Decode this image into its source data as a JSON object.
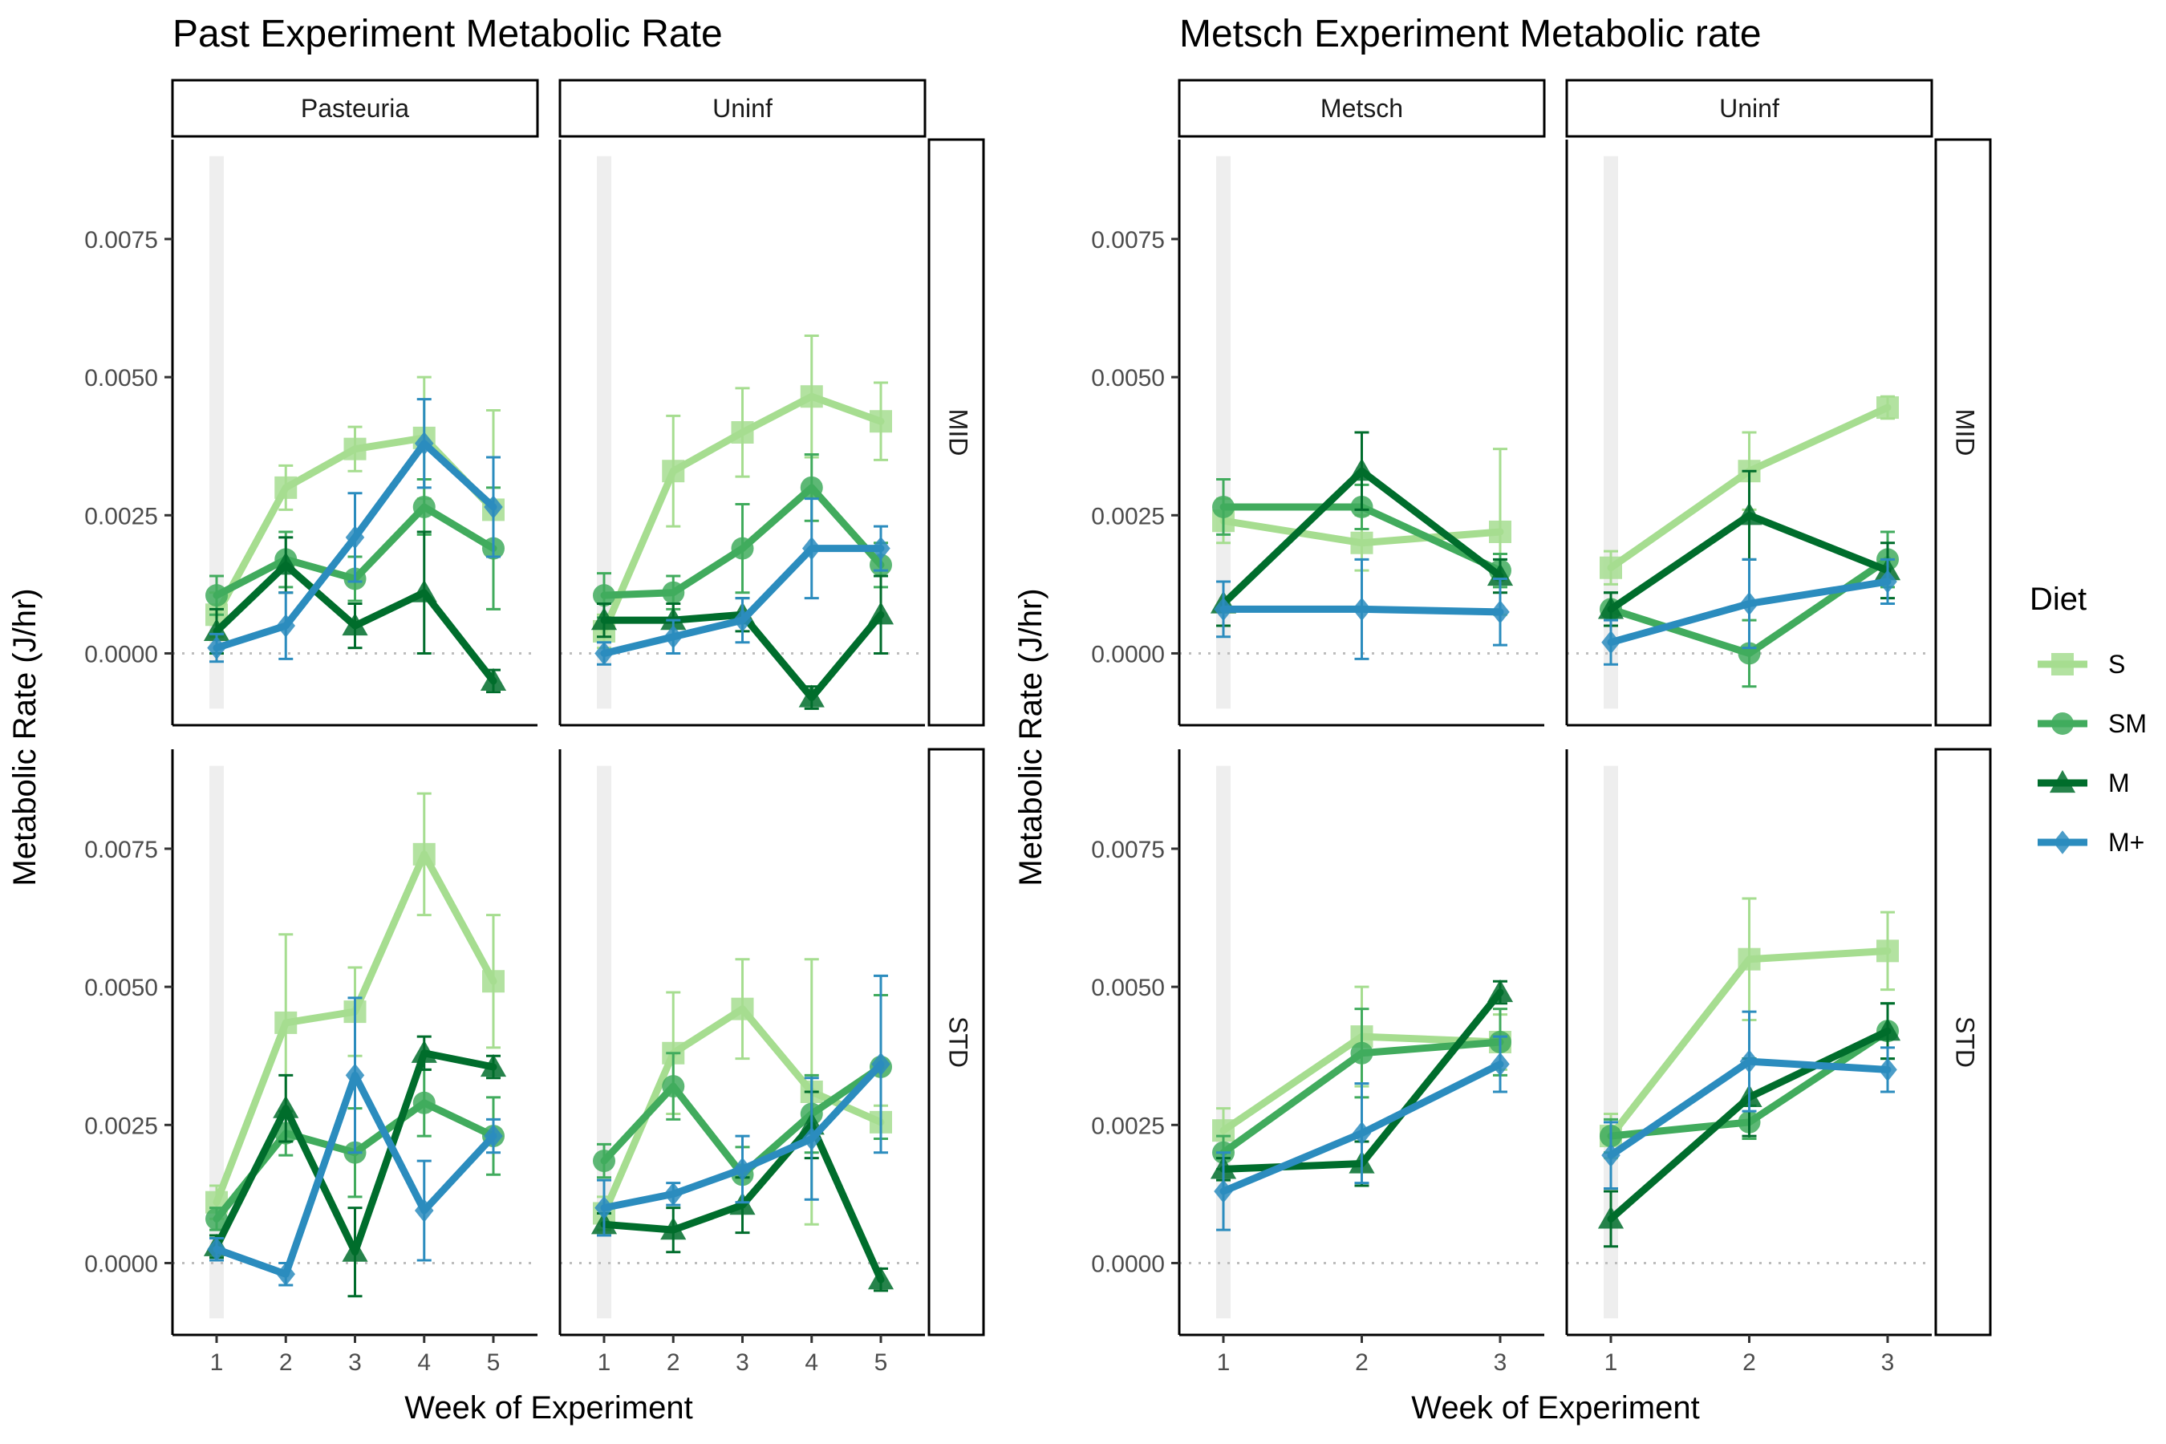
{
  "legend": {
    "title": "Diet",
    "items": [
      {
        "label": "S",
        "color": "#a6dd90",
        "shape": "square"
      },
      {
        "label": "SM",
        "color": "#41ab5d",
        "shape": "circle"
      },
      {
        "label": "M",
        "color": "#006d2c",
        "shape": "triangle"
      },
      {
        "label": "M+",
        "color": "#2b8cbe",
        "shape": "diamond"
      }
    ]
  },
  "chart_data": [
    {
      "type": "line",
      "title": "Past Experiment Metabolic Rate",
      "xlabel": "Week of Experiment",
      "ylabel": "Metabolic Rate (J/hr)",
      "ylim": [
        -0.0013,
        0.0093
      ],
      "yticks": [
        "0.0000",
        "0.0025",
        "0.0050",
        "0.0075"
      ],
      "ytick_values": [
        0,
        0.0025,
        0.005,
        0.0075
      ],
      "x": [
        1,
        2,
        3,
        4,
        5
      ],
      "xticks": [
        "1",
        "2",
        "3",
        "4",
        "5"
      ],
      "col_facets": [
        "Pasteuria",
        "Uninf"
      ],
      "row_facets": [
        "MID",
        "STD"
      ],
      "grid": false,
      "legend_position": "right",
      "panels": [
        {
          "col": "Pasteuria",
          "row": "MID",
          "series": [
            {
              "name": "S",
              "values": [
                0.0007,
                0.003,
                0.0037,
                0.0039,
                0.0026
              ],
              "errors": [
                0.0004,
                0.0004,
                0.0004,
                0.0011,
                0.0018
              ]
            },
            {
              "name": "SM",
              "values": [
                0.00105,
                0.0017,
                0.00135,
                0.00265,
                0.0019
              ],
              "errors": [
                0.00035,
                0.0005,
                0.0004,
                0.0005,
                0.0011
              ]
            },
            {
              "name": "M",
              "values": [
                0.0004,
                0.0016,
                0.0005,
                0.0011,
                -0.0005
              ],
              "errors": [
                0.0004,
                0.0005,
                0.0004,
                0.0011,
                0.0002
              ]
            },
            {
              "name": "M+",
              "values": [
                0.0001,
                0.0005,
                0.0021,
                0.0038,
                0.00265
              ],
              "errors": [
                0.00025,
                0.0006,
                0.0008,
                0.0008,
                0.0009
              ]
            }
          ]
        },
        {
          "col": "Uninf",
          "row": "MID",
          "series": [
            {
              "name": "S",
              "values": [
                0.0004,
                0.0033,
                0.004,
                0.00465,
                0.0042
              ],
              "errors": [
                0.0003,
                0.001,
                0.0008,
                0.0011,
                0.0007
              ]
            },
            {
              "name": "SM",
              "values": [
                0.00105,
                0.0011,
                0.0019,
                0.003,
                0.0016
              ],
              "errors": [
                0.0004,
                0.0003,
                0.0008,
                0.0006,
                0.0004
              ]
            },
            {
              "name": "M",
              "values": [
                0.0006,
                0.0006,
                0.0007,
                -0.0008,
                0.0007
              ],
              "errors": [
                0.0003,
                0.0003,
                0.0003,
                0.0002,
                0.0007
              ]
            },
            {
              "name": "M+",
              "values": [
                0.0,
                0.0003,
                0.0006,
                0.0019,
                0.0019
              ],
              "errors": [
                0.0002,
                0.0003,
                0.0004,
                0.0009,
                0.0004
              ]
            }
          ]
        },
        {
          "col": "Pasteuria",
          "row": "STD",
          "series": [
            {
              "name": "S",
              "values": [
                0.0011,
                0.00435,
                0.00455,
                0.0074,
                0.0051
              ],
              "errors": [
                0.0003,
                0.0016,
                0.0008,
                0.0011,
                0.0012
              ]
            },
            {
              "name": "SM",
              "values": [
                0.0008,
                0.00235,
                0.002,
                0.0029,
                0.0023
              ],
              "errors": [
                0.0002,
                0.0004,
                0.0008,
                0.0006,
                0.0007
              ]
            },
            {
              "name": "M",
              "values": [
                0.0003,
                0.0028,
                0.0002,
                0.0038,
                0.00355
              ],
              "errors": [
                0.0002,
                0.0006,
                0.0008,
                0.0003,
                0.0002
              ]
            },
            {
              "name": "M+",
              "values": [
                0.00025,
                -0.0002,
                0.0034,
                0.00095,
                0.0023
              ],
              "errors": [
                0.0002,
                0.0002,
                0.0014,
                0.0009,
                0.0003
              ]
            }
          ]
        },
        {
          "col": "Uninf",
          "row": "STD",
          "series": [
            {
              "name": "S",
              "values": [
                0.0009,
                0.0038,
                0.0046,
                0.0031,
                0.00255
              ],
              "errors": [
                0.0003,
                0.0011,
                0.0009,
                0.0024,
                0.0003
              ]
            },
            {
              "name": "SM",
              "values": [
                0.00185,
                0.0032,
                0.0016,
                0.0027,
                0.00355
              ],
              "errors": [
                0.0003,
                0.0006,
                0.0005,
                0.0007,
                0.0013
              ]
            },
            {
              "name": "M",
              "values": [
                0.0007,
                0.0006,
                0.00105,
                0.0025,
                -0.0003
              ],
              "errors": [
                0.0002,
                0.0004,
                0.0005,
                0.0006,
                0.0002
              ]
            },
            {
              "name": "M+",
              "values": [
                0.001,
                0.00125,
                0.0017,
                0.00225,
                0.0036
              ],
              "errors": [
                0.0005,
                0.0002,
                0.0006,
                0.0011,
                0.0016
              ]
            }
          ]
        }
      ]
    },
    {
      "type": "line",
      "title": "Metsch Experiment Metabolic rate",
      "xlabel": "Week of Experiment",
      "ylabel": "Metabolic Rate (J/hr)",
      "ylim": [
        -0.0013,
        0.0093
      ],
      "yticks": [
        "0.0000",
        "0.0025",
        "0.0050",
        "0.0075"
      ],
      "ytick_values": [
        0,
        0.0025,
        0.005,
        0.0075
      ],
      "x": [
        1,
        2,
        3
      ],
      "xticks": [
        "1",
        "2",
        "3"
      ],
      "col_facets": [
        "Metsch",
        "Uninf"
      ],
      "row_facets": [
        "MID",
        "STD"
      ],
      "grid": false,
      "legend_position": "right",
      "panels": [
        {
          "col": "Metsch",
          "row": "MID",
          "series": [
            {
              "name": "S",
              "values": [
                0.0024,
                0.002,
                0.0022
              ],
              "errors": [
                0.0004,
                0.0005,
                0.0015
              ]
            },
            {
              "name": "SM",
              "values": [
                0.00265,
                0.00265,
                0.0015
              ],
              "errors": [
                0.0005,
                0.0004,
                0.0003
              ]
            },
            {
              "name": "M",
              "values": [
                0.0009,
                0.0033,
                0.0014
              ],
              "errors": [
                0.0004,
                0.0007,
                0.0003
              ]
            },
            {
              "name": "M+",
              "values": [
                0.0008,
                0.0008,
                0.00075
              ],
              "errors": [
                0.0005,
                0.0009,
                0.0006
              ]
            }
          ]
        },
        {
          "col": "Uninf",
          "row": "MID",
          "series": [
            {
              "name": "S",
              "values": [
                0.00155,
                0.0033,
                0.00445
              ],
              "errors": [
                0.0003,
                0.0007,
                0.0002
              ]
            },
            {
              "name": "SM",
              "values": [
                0.0008,
                0.0,
                0.0017
              ],
              "errors": [
                0.0003,
                0.0006,
                0.0005
              ]
            },
            {
              "name": "M",
              "values": [
                0.0008,
                0.0025,
                0.0015
              ],
              "errors": [
                0.0003,
                0.0008,
                0.0005
              ]
            },
            {
              "name": "M+",
              "values": [
                0.0002,
                0.0009,
                0.0013
              ],
              "errors": [
                0.0004,
                0.0008,
                0.0004
              ]
            }
          ]
        },
        {
          "col": "Metsch",
          "row": "STD",
          "series": [
            {
              "name": "S",
              "values": [
                0.0024,
                0.0041,
                0.004
              ],
              "errors": [
                0.0004,
                0.0009,
                0.0005
              ]
            },
            {
              "name": "SM",
              "values": [
                0.002,
                0.0038,
                0.004
              ],
              "errors": [
                0.0003,
                0.0008,
                0.0006
              ]
            },
            {
              "name": "M",
              "values": [
                0.0017,
                0.0018,
                0.0049
              ],
              "errors": [
                0.0002,
                0.0004,
                0.0002
              ]
            },
            {
              "name": "M+",
              "values": [
                0.0013,
                0.00235,
                0.0036
              ],
              "errors": [
                0.0007,
                0.0009,
                0.0005
              ]
            }
          ]
        },
        {
          "col": "Uninf",
          "row": "STD",
          "series": [
            {
              "name": "S",
              "values": [
                0.0023,
                0.0055,
                0.00565
              ],
              "errors": [
                0.0004,
                0.0011,
                0.0007
              ]
            },
            {
              "name": "SM",
              "values": [
                0.0023,
                0.00255,
                0.0042
              ],
              "errors": [
                0.0003,
                0.0003,
                0.0005
              ]
            },
            {
              "name": "M",
              "values": [
                0.0008,
                0.003,
                0.0042
              ],
              "errors": [
                0.0005,
                0.0007,
                0.0005
              ]
            },
            {
              "name": "M+",
              "values": [
                0.00195,
                0.00365,
                0.0035
              ],
              "errors": [
                0.0006,
                0.0009,
                0.0004
              ]
            }
          ]
        }
      ]
    }
  ]
}
